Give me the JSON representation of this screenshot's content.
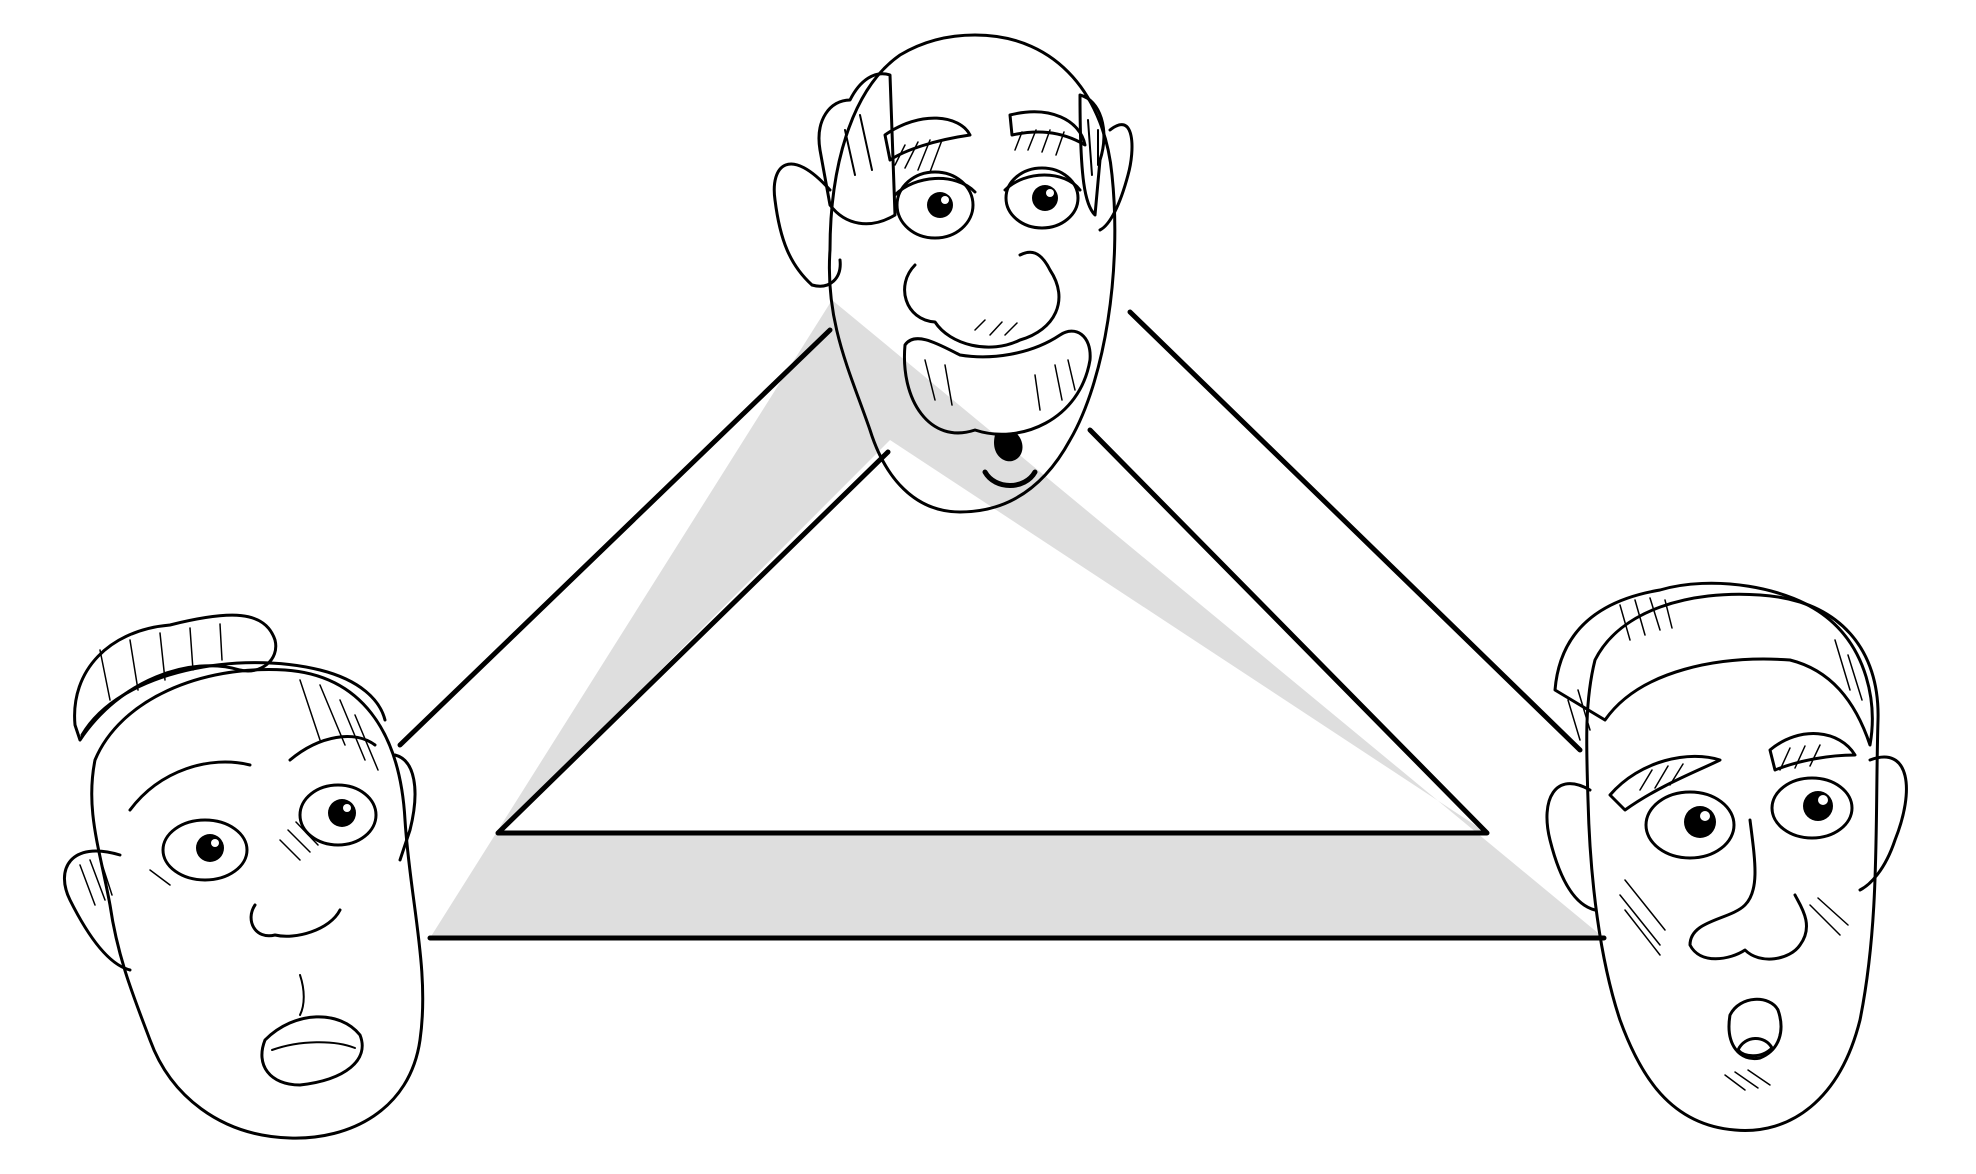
{
  "diagram": {
    "kind": "triangle-of-faces",
    "band_color": "#dedede",
    "line_color": "#000000",
    "background": "#ffffff"
  },
  "characters": [
    {
      "id": "top",
      "description_icon": "bald-old-man-face-icon"
    },
    {
      "id": "left",
      "description_icon": "woman-with-hair-bun-face-icon"
    },
    {
      "id": "right",
      "description_icon": "man-with-short-hair-face-icon"
    }
  ]
}
